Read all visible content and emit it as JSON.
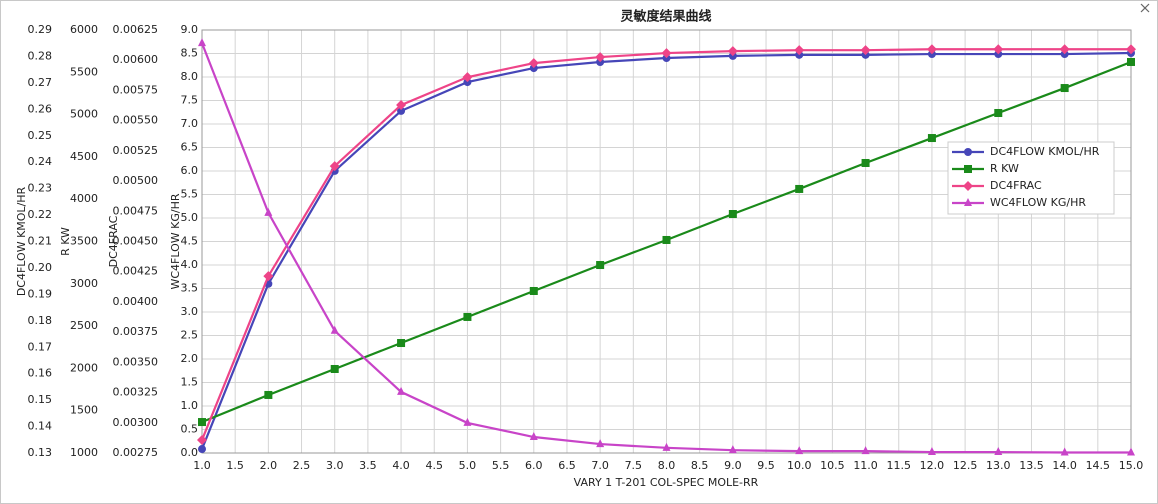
{
  "chart_data": {
    "type": "line",
    "title": "灵敏度结果曲线",
    "xlabel": "VARY   1 T-201 COL-SPEC MOLE-RR",
    "x": [
      1,
      2,
      3,
      4,
      5,
      6,
      7,
      8,
      9,
      10,
      11,
      12,
      13,
      14,
      15
    ],
    "xlim": [
      1,
      15
    ],
    "xticks": [
      {
        "value": 1,
        "label": "1.0"
      },
      1.5,
      {
        "value": 2,
        "label": "2.0"
      },
      2.5,
      {
        "value": 3,
        "label": "3.0"
      },
      3.5,
      {
        "value": 4,
        "label": "4.0"
      },
      4.5,
      {
        "value": 5,
        "label": "5.0"
      },
      5.5,
      {
        "value": 6,
        "label": "6.0"
      },
      6.5,
      {
        "value": 7,
        "label": "7.0"
      },
      7.5,
      {
        "value": 8,
        "label": "8.0"
      },
      8.5,
      {
        "value": 9,
        "label": "9.0"
      },
      9.5,
      {
        "value": 10,
        "label": "10.0"
      },
      10.5,
      {
        "value": 11,
        "label": "11.0"
      },
      11.5,
      {
        "value": 12,
        "label": "12.0"
      },
      12.5,
      {
        "value": 13,
        "label": "13.0"
      },
      13.5,
      {
        "value": 14,
        "label": "14.0"
      },
      14.5,
      {
        "value": 15,
        "label": "15.0"
      }
    ],
    "y_axes": [
      {
        "label": "DC4FLOW KMOL/HR",
        "ylim": [
          0.13,
          0.29
        ],
        "yticks": [
          0.13,
          0.14,
          0.15,
          0.16,
          0.17,
          0.18,
          0.19,
          {
            "value": 0.2,
            "label": "0.20"
          },
          0.21,
          0.22,
          0.23,
          0.24,
          0.25,
          0.26,
          0.27,
          0.28,
          0.29
        ]
      },
      {
        "label": "R KW",
        "ylim": [
          1000,
          6000
        ],
        "yticks": [
          1000,
          1500,
          2000,
          2500,
          3000,
          3500,
          4000,
          4500,
          5000,
          5500,
          6000
        ]
      },
      {
        "label": "DC4FRAC",
        "ylim": [
          0.00275,
          0.00625
        ],
        "yticks": [
          0.00275,
          {
            "value": 0.003,
            "label": "0.00300"
          },
          0.00325,
          {
            "value": 0.0035,
            "label": "0.00350"
          },
          0.00375,
          {
            "value": 0.004,
            "label": "0.00400"
          },
          0.00425,
          {
            "value": 0.0045,
            "label": "0.00450"
          },
          0.00475,
          {
            "value": 0.005,
            "label": "0.00500"
          },
          0.00525,
          {
            "value": 0.0055,
            "label": "0.00550"
          },
          0.00575,
          {
            "value": 0.006,
            "label": "0.00600"
          },
          0.00625
        ]
      },
      {
        "label": "WC4FLOW KG/HR",
        "ylim": [
          0,
          9
        ],
        "yticks": [
          {
            "value": 0,
            "label": "0.0"
          },
          0.5,
          {
            "value": 1,
            "label": "1.0"
          },
          1.5,
          {
            "value": 2,
            "label": "2.0"
          },
          2.5,
          {
            "value": 3,
            "label": "3.0"
          },
          3.5,
          {
            "value": 4,
            "label": "4.0"
          },
          4.5,
          {
            "value": 5,
            "label": "5.0"
          },
          5.5,
          {
            "value": 6,
            "label": "6.0"
          },
          6.5,
          {
            "value": 7,
            "label": "7.0"
          },
          7.5,
          {
            "value": 8,
            "label": "8.0"
          },
          8.5,
          {
            "value": 9,
            "label": "9.0"
          }
        ]
      }
    ],
    "grid": true,
    "legend": "right",
    "series": [
      {
        "name": "DC4FLOW KMOL/HR",
        "color": "#4646b8",
        "marker": "circle",
        "axis": 0,
        "values": [
          0.1315,
          0.194,
          0.2367,
          0.2594,
          0.2703,
          0.2756,
          0.2779,
          0.2794,
          0.2802,
          0.2806,
          0.2806,
          0.2809,
          0.2809,
          0.2809,
          0.2813
        ]
      },
      {
        "name": "R KW",
        "color": "#1a8a1a",
        "marker": "square",
        "axis": 1,
        "values": [
          1366,
          1686,
          1993,
          2300,
          2608,
          2915,
          3222,
          3518,
          3825,
          4121,
          4428,
          4723,
          5019,
          5314,
          5622
        ]
      },
      {
        "name": "DC4FRAC",
        "color": "#ee4488",
        "marker": "diamond",
        "axis": 2,
        "values": [
          0.002858,
          0.004214,
          0.005124,
          0.005629,
          0.00586,
          0.005976,
          0.006026,
          0.006059,
          0.006075,
          0.006083,
          0.006083,
          0.006091,
          0.006091,
          0.006091,
          0.006091
        ]
      },
      {
        "name": "WC4FLOW KG/HR",
        "color": "#c844c8",
        "marker": "triangle",
        "axis": 3,
        "values": [
          8.72,
          5.11,
          2.6,
          1.3,
          0.64,
          0.34,
          0.19,
          0.11,
          0.06,
          0.04,
          0.04,
          0.02,
          0.02,
          0.01,
          0.01
        ]
      }
    ]
  }
}
